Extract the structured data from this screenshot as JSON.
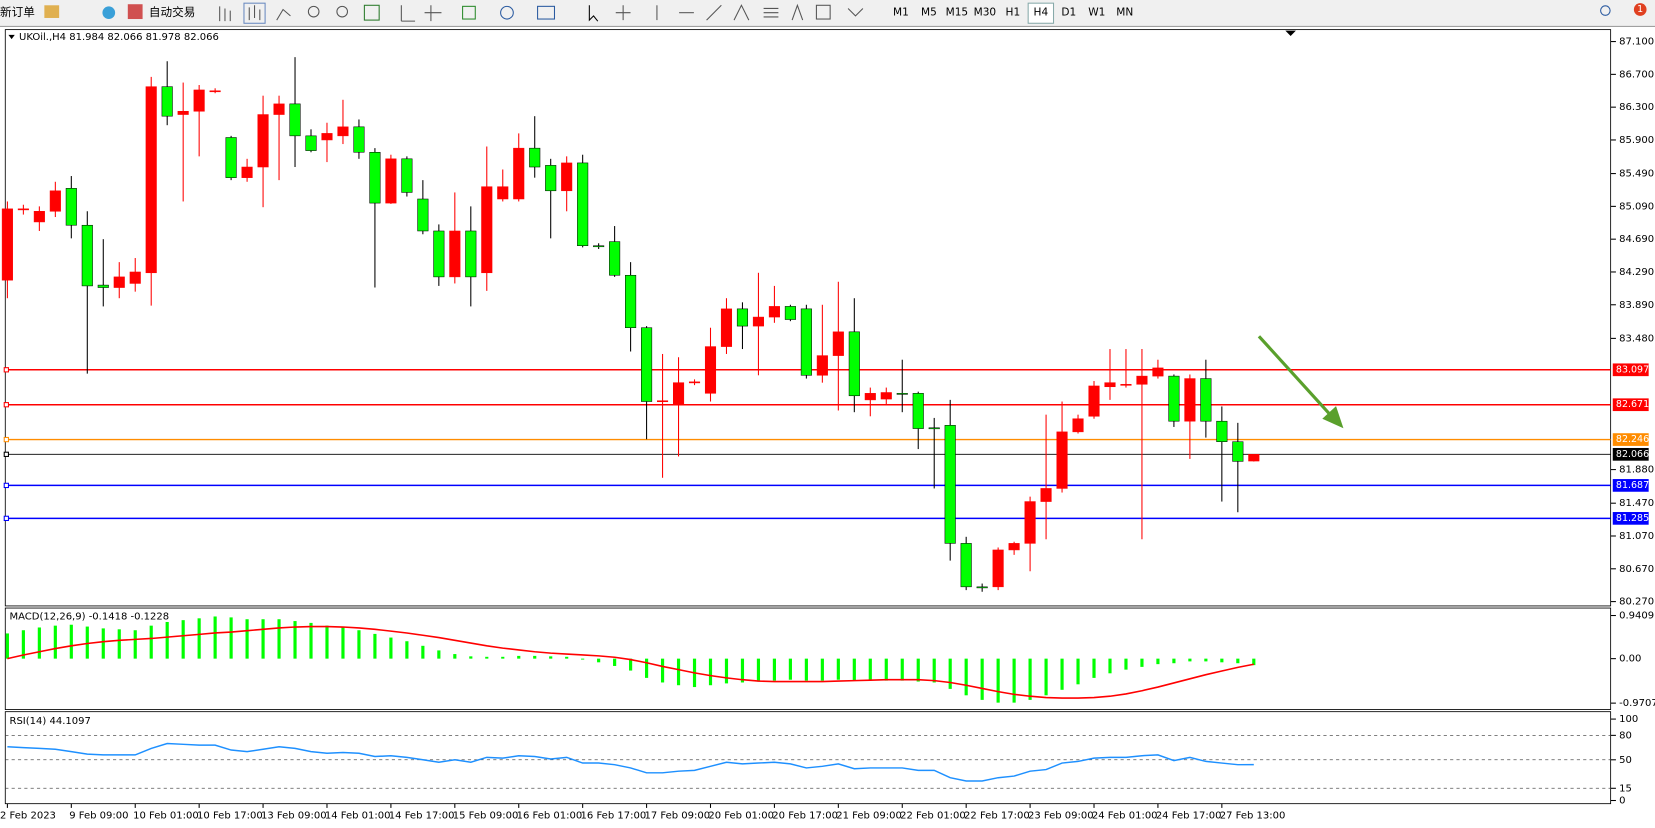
{
  "toolbar": {
    "new_order": "新订单",
    "auto_trading": "自动交易",
    "timeframes": [
      "M1",
      "M5",
      "M15",
      "M30",
      "H1",
      "H4",
      "D1",
      "W1",
      "MN"
    ],
    "active_timeframe": "H4",
    "notifications": "1"
  },
  "chart_data": [
    {
      "type": "candlestick",
      "title": "UKOil.,H4 81.984 82.066 81.978 82.066",
      "categories": [
        "2 Feb 2023",
        null,
        null,
        null,
        "9 Feb 09:00",
        null,
        null,
        null,
        "10 Feb 01:00",
        null,
        null,
        null,
        "10 Feb 17:00",
        null,
        null,
        null,
        "13 Feb 09:00",
        null,
        null,
        null,
        "14 Feb 01:00",
        null,
        null,
        null,
        "14 Feb 17:00",
        null,
        null,
        null,
        "15 Feb 09:00",
        null,
        null,
        null,
        "16 Feb 01:00",
        null,
        null,
        null,
        "16 Feb 17:00",
        null,
        null,
        null,
        "17 Feb 09:00",
        null,
        null,
        null,
        "20 Feb 01:00",
        null,
        null,
        null,
        "20 Feb 17:00",
        null,
        null,
        null,
        "21 Feb 09:00",
        null,
        null,
        null,
        "22 Feb 01:00",
        null,
        null,
        null,
        "22 Feb 17:00",
        null,
        null,
        null,
        "23 Feb 09:00",
        null,
        null,
        null,
        "24 Feb 01:00",
        null,
        null,
        null,
        "24 Feb 17:00",
        null,
        null,
        null,
        "27 Feb 13:00",
        null,
        null
      ],
      "open": [
        84.19,
        85.06,
        84.9,
        85.03,
        85.31,
        84.86,
        84.13,
        84.1,
        84.15,
        84.28,
        86.55,
        86.21,
        86.25,
        86.49,
        85.93,
        85.44,
        85.57,
        86.21,
        86.34,
        85.95,
        85.9,
        85.95,
        86.06,
        85.75,
        85.13,
        85.67,
        85.18,
        84.79,
        84.23,
        84.79,
        84.28,
        85.18,
        85.18,
        85.8,
        85.59,
        85.28,
        85.62,
        84.61,
        84.66,
        84.25,
        83.61,
        82.71,
        82.68,
        82.94,
        82.81,
        83.38,
        83.84,
        83.63,
        83.74,
        83.87,
        83.84,
        83.03,
        83.27,
        83.56,
        82.73,
        82.74,
        82.81,
        82.81,
        82.39,
        82.42,
        80.98,
        80.45,
        80.45,
        80.9,
        80.98,
        81.49,
        81.65,
        82.34,
        82.53,
        82.89,
        82.92,
        82.92,
        83.02,
        83.02,
        82.47,
        82.99,
        82.47,
        82.22,
        81.984
      ],
      "high": [
        85.15,
        85.11,
        85.09,
        85.39,
        85.46,
        85.03,
        84.69,
        84.41,
        84.46,
        86.67,
        86.86,
        86.6,
        86.57,
        86.53,
        85.95,
        85.67,
        86.44,
        86.44,
        86.91,
        86.03,
        86.11,
        86.39,
        86.15,
        85.8,
        85.72,
        85.7,
        85.41,
        84.87,
        85.26,
        85.09,
        85.82,
        85.54,
        85.98,
        86.19,
        85.67,
        85.7,
        85.72,
        84.64,
        84.85,
        84.41,
        83.63,
        83.29,
        83.25,
        82.98,
        83.61,
        83.97,
        83.92,
        84.28,
        84.12,
        83.89,
        83.89,
        83.89,
        84.17,
        83.97,
        82.88,
        82.88,
        83.22,
        82.83,
        82.51,
        82.73,
        81.06,
        80.49,
        80.93,
        81.0,
        81.55,
        82.55,
        82.71,
        82.55,
        82.96,
        83.35,
        83.35,
        83.35,
        83.22,
        83.04,
        83.04,
        83.22,
        82.65,
        82.45,
        82.066
      ],
      "low": [
        83.97,
        84.99,
        84.79,
        84.96,
        84.7,
        83.05,
        83.87,
        83.97,
        84.05,
        83.88,
        86.08,
        85.15,
        85.7,
        86.47,
        85.41,
        85.39,
        85.08,
        85.41,
        85.57,
        85.75,
        85.63,
        85.85,
        85.67,
        84.1,
        85.12,
        85.21,
        84.75,
        84.12,
        84.15,
        83.87,
        84.06,
        85.15,
        85.15,
        85.44,
        84.7,
        85.03,
        84.59,
        84.57,
        84.23,
        83.32,
        82.25,
        81.78,
        82.04,
        82.91,
        82.71,
        83.29,
        83.35,
        83.03,
        83.67,
        83.69,
        82.99,
        82.94,
        82.6,
        82.58,
        82.53,
        82.68,
        82.58,
        82.13,
        81.65,
        80.77,
        80.41,
        80.39,
        80.41,
        80.84,
        80.64,
        81.03,
        81.6,
        82.32,
        82.5,
        82.73,
        82.88,
        81.03,
        82.99,
        82.4,
        82.01,
        82.27,
        81.49,
        81.36,
        81.978
      ],
      "close": [
        85.06,
        85.06,
        85.03,
        85.28,
        84.86,
        84.12,
        84.1,
        84.23,
        84.29,
        86.55,
        86.19,
        86.25,
        86.51,
        86.5,
        85.44,
        85.57,
        86.21,
        86.34,
        85.95,
        85.77,
        85.98,
        86.06,
        85.75,
        85.13,
        85.67,
        85.26,
        84.79,
        84.23,
        84.79,
        84.23,
        85.33,
        85.33,
        85.8,
        85.57,
        85.28,
        85.62,
        84.61,
        84.6,
        84.25,
        83.61,
        82.71,
        82.72,
        82.94,
        82.95,
        83.38,
        83.84,
        83.63,
        83.74,
        83.87,
        83.71,
        83.03,
        83.27,
        83.56,
        82.78,
        82.81,
        82.82,
        82.8,
        82.38,
        82.38,
        80.98,
        80.45,
        80.44,
        80.9,
        80.98,
        81.49,
        81.65,
        82.34,
        82.5,
        82.9,
        82.94,
        82.92,
        83.02,
        83.12,
        82.47,
        82.99,
        82.47,
        82.22,
        81.98,
        82.066
      ],
      "up_color": "#ff0000",
      "down_color": "#00ff00",
      "ylim": [
        80.23,
        87.22
      ],
      "yticks": [
        {
          "value": 87.1,
          "label": "87.100"
        },
        {
          "value": 86.7,
          "label": "86.700"
        },
        {
          "value": 86.3,
          "label": "86.300"
        },
        {
          "value": 85.9,
          "label": "85.900"
        },
        {
          "value": 85.49,
          "label": "85.490"
        },
        {
          "value": 85.09,
          "label": "85.090"
        },
        {
          "value": 84.69,
          "label": "84.690"
        },
        {
          "value": 84.29,
          "label": "84.290"
        },
        {
          "value": 83.89,
          "label": "83.890"
        },
        {
          "value": 83.48,
          "label": "83.480"
        },
        {
          "value": 81.88,
          "label": "81.880"
        },
        {
          "value": 81.47,
          "label": "81.470"
        },
        {
          "value": 81.07,
          "label": "81.070"
        },
        {
          "value": 80.67,
          "label": "80.670"
        },
        {
          "value": 80.27,
          "label": "80.270"
        }
      ],
      "levels": [
        {
          "value": 83.097,
          "color": "#ff0000"
        },
        {
          "value": 82.671,
          "color": "#ff0000"
        },
        {
          "value": 82.246,
          "color": "#ff8c00"
        },
        {
          "value": 82.066,
          "color": "#000000"
        },
        {
          "value": 81.687,
          "color": "#0000ff"
        },
        {
          "value": 81.285,
          "color": "#0000ff"
        }
      ]
    },
    {
      "type": "macd",
      "title": "MACD(12,26,9) -0.1418 -0.1228",
      "histogram": [
        0.55,
        0.62,
        0.68,
        0.72,
        0.74,
        0.7,
        0.66,
        0.64,
        0.62,
        0.72,
        0.8,
        0.84,
        0.88,
        0.92,
        0.9,
        0.86,
        0.86,
        0.86,
        0.82,
        0.78,
        0.72,
        0.68,
        0.62,
        0.54,
        0.46,
        0.38,
        0.28,
        0.18,
        0.1,
        0.05,
        0.04,
        0.04,
        0.06,
        0.06,
        0.05,
        0.04,
        -0.02,
        -0.08,
        -0.16,
        -0.26,
        -0.42,
        -0.52,
        -0.58,
        -0.62,
        -0.58,
        -0.54,
        -0.52,
        -0.5,
        -0.48,
        -0.46,
        -0.48,
        -0.48,
        -0.46,
        -0.48,
        -0.48,
        -0.48,
        -0.48,
        -0.5,
        -0.52,
        -0.66,
        -0.8,
        -0.9,
        -0.96,
        -0.96,
        -0.9,
        -0.8,
        -0.68,
        -0.56,
        -0.42,
        -0.32,
        -0.24,
        -0.18,
        -0.12,
        -0.1,
        -0.06,
        -0.06,
        -0.08,
        -0.1,
        -0.1418
      ],
      "signal": [
        0.0,
        0.08,
        0.15,
        0.22,
        0.28,
        0.33,
        0.37,
        0.4,
        0.42,
        0.44,
        0.47,
        0.5,
        0.53,
        0.56,
        0.58,
        0.61,
        0.64,
        0.67,
        0.69,
        0.7,
        0.7,
        0.69,
        0.67,
        0.64,
        0.6,
        0.56,
        0.51,
        0.46,
        0.4,
        0.34,
        0.28,
        0.23,
        0.19,
        0.15,
        0.12,
        0.1,
        0.08,
        0.06,
        0.03,
        -0.02,
        -0.09,
        -0.17,
        -0.24,
        -0.31,
        -0.37,
        -0.42,
        -0.46,
        -0.49,
        -0.5,
        -0.5,
        -0.5,
        -0.5,
        -0.49,
        -0.48,
        -0.47,
        -0.46,
        -0.46,
        -0.46,
        -0.48,
        -0.52,
        -0.58,
        -0.65,
        -0.72,
        -0.78,
        -0.82,
        -0.85,
        -0.86,
        -0.86,
        -0.85,
        -0.82,
        -0.77,
        -0.7,
        -0.62,
        -0.53,
        -0.44,
        -0.35,
        -0.27,
        -0.19,
        -0.1228
      ],
      "hist_color": "#00ff00",
      "signal_color": "#ff0000",
      "ylim": [
        -1.111,
        1.104
      ],
      "yticks": [
        {
          "value": 0.9409,
          "label": "0.9409"
        },
        {
          "value": 0,
          "label": "0.00"
        },
        {
          "value": -0.9707,
          "label": "-0.9707"
        }
      ]
    },
    {
      "type": "line",
      "title": "RSI(14) 44.1097",
      "values": [
        66,
        65,
        64,
        63,
        60,
        57,
        56,
        56,
        56,
        64,
        70,
        69,
        68,
        68,
        62,
        60,
        63,
        66,
        64,
        60,
        58,
        59,
        58,
        54,
        55,
        53,
        50,
        47,
        50,
        47,
        53,
        52,
        55,
        54,
        51,
        53,
        46,
        46,
        44,
        40,
        34,
        34,
        36,
        37,
        42,
        47,
        45,
        46,
        47,
        45,
        40,
        42,
        45,
        39,
        40,
        40,
        40,
        37,
        37,
        28,
        24,
        24,
        28,
        30,
        36,
        38,
        46,
        48,
        52,
        53,
        53,
        55,
        56,
        49,
        53,
        48,
        46,
        44,
        44.1097
      ],
      "color": "#1e90ff",
      "ylim": [
        0,
        100
      ],
      "yticks": [
        100,
        80,
        50,
        15,
        0
      ],
      "levels": [
        80,
        50,
        15
      ]
    }
  ]
}
